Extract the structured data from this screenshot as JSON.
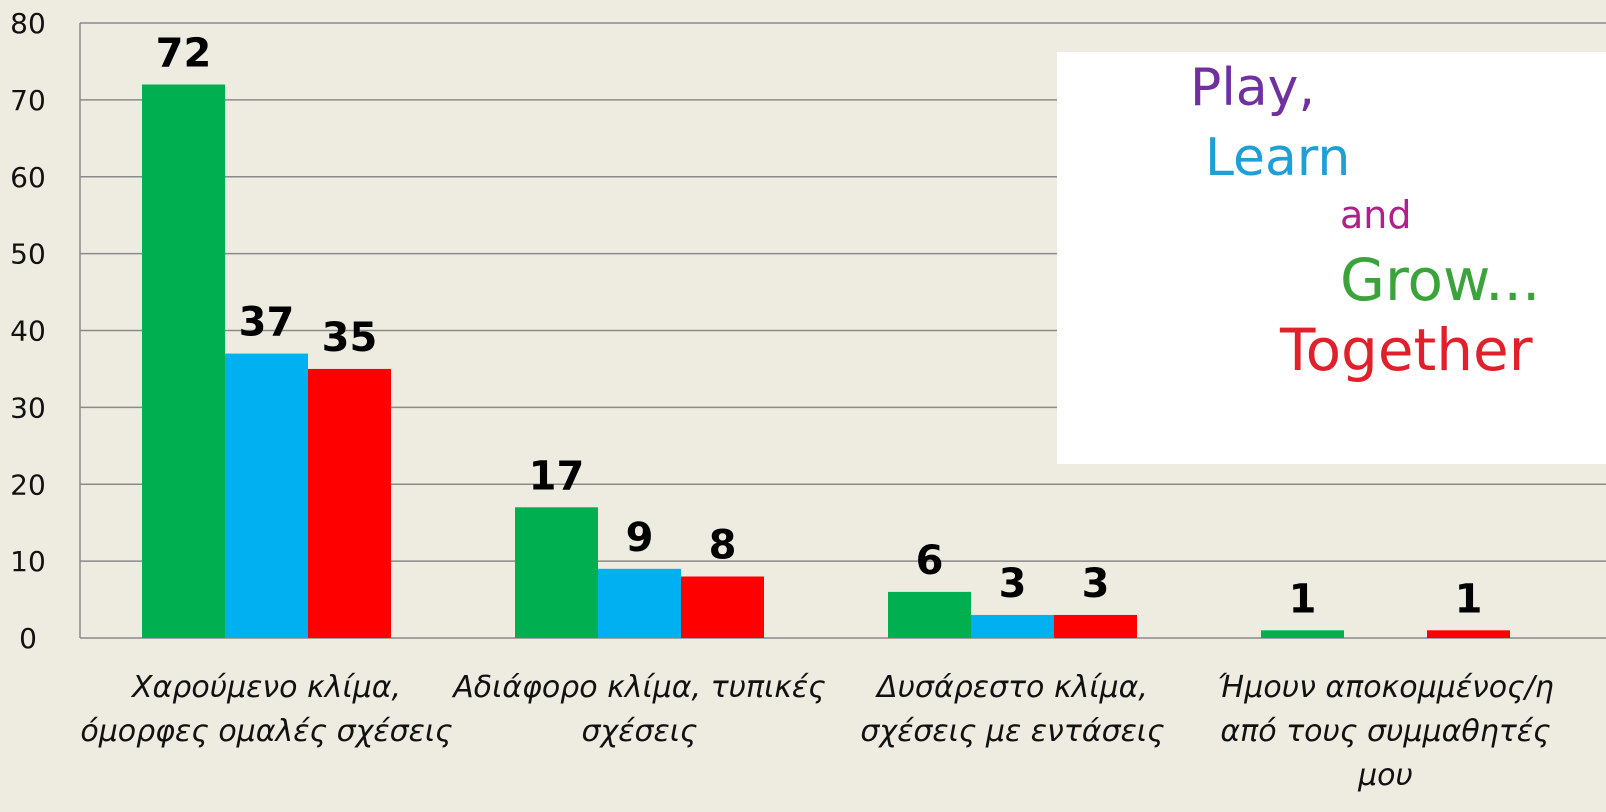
{
  "chart_data": {
    "type": "bar",
    "categories": [
      "Χαρούμενο κλίμα, όμορφες ομαλές σχέσεις",
      "Αδιάφορο κλίμα, τυπικές σχέσεις",
      "Δυσάρεστο κλίμα, σχέσεις με εντάσεις",
      "Ήμουν αποκομμένος/η από τους συμμαθητές μου"
    ],
    "series": [
      {
        "color": "#00b050",
        "values": [
          72,
          17,
          6,
          1
        ]
      },
      {
        "color": "#00b0f0",
        "values": [
          37,
          9,
          3,
          null
        ]
      },
      {
        "color": "#ff0000",
        "values": [
          35,
          8,
          3,
          1
        ]
      }
    ],
    "ylim": [
      0,
      80
    ],
    "yticks": [
      0,
      10,
      20,
      30,
      40,
      50,
      60,
      70,
      80
    ],
    "grid": true
  },
  "illustration": {
    "texts": [
      "Play,",
      "Learn",
      "and",
      "Grow...",
      "Together"
    ]
  }
}
